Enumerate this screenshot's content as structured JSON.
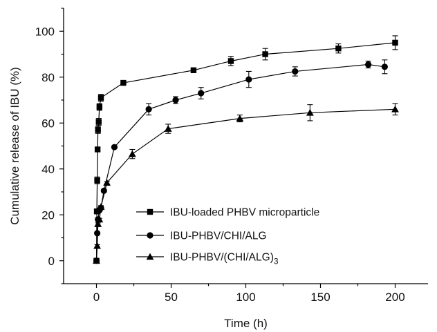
{
  "chart_data": {
    "type": "line",
    "title": "",
    "xlabel": "Time (h)",
    "ylabel": "Cumulative release of IBU (%)",
    "xlim": [
      -22,
      222
    ],
    "ylim": [
      -10,
      110
    ],
    "xticks": [
      0,
      50,
      100,
      150,
      200
    ],
    "yticks": [
      0,
      20,
      40,
      60,
      80,
      100
    ],
    "xtick_labels": [
      "0",
      "50",
      "100",
      "150",
      "200"
    ],
    "ytick_labels": [
      "0",
      "20",
      "40",
      "60",
      "80",
      "100"
    ],
    "grid": false,
    "legend_position": "lower-center",
    "series": [
      {
        "name": "IBU-loaded PHBV microparticle",
        "marker": "square",
        "x": [
          0,
          0.25,
          0.5,
          0.75,
          1,
          1.5,
          2,
          3,
          18,
          65,
          90,
          113,
          162,
          200
        ],
        "y": [
          0,
          21.5,
          35,
          48.5,
          57,
          60.5,
          67,
          71,
          77.5,
          83,
          87,
          90,
          92.5,
          95
        ],
        "err": [
          0,
          1,
          1.5,
          1,
          1.5,
          1.5,
          1.5,
          1.5,
          0.5,
          0.5,
          2,
          2.5,
          2,
          3
        ]
      },
      {
        "name": "IBU-PHBV/CHI/ALG",
        "marker": "circle",
        "x": [
          0,
          0.5,
          1,
          2,
          3,
          5,
          12,
          35,
          53,
          70,
          102,
          133,
          182,
          193
        ],
        "y": [
          0,
          12,
          18,
          22,
          23,
          30.5,
          49.5,
          66,
          70,
          73,
          79,
          82.5,
          85.5,
          84.5
        ],
        "err": [
          0,
          0.5,
          0.5,
          0.5,
          0.5,
          0.5,
          0.5,
          2.5,
          1.5,
          2.5,
          3.5,
          2,
          1.5,
          3
        ]
      },
      {
        "name": "IBU-PHBV/(CHI/ALG)",
        "name_subscript": "3",
        "marker": "triangle",
        "x": [
          0,
          0.5,
          1,
          2,
          3,
          7,
          24,
          48,
          96,
          143,
          200
        ],
        "y": [
          0,
          6.5,
          16,
          18,
          23.5,
          34,
          46.5,
          57.5,
          62,
          64.5,
          66
        ],
        "err": [
          0,
          0.5,
          0.5,
          0.5,
          0.5,
          0.5,
          2,
          2,
          1.5,
          3.5,
          2.5
        ]
      }
    ]
  }
}
